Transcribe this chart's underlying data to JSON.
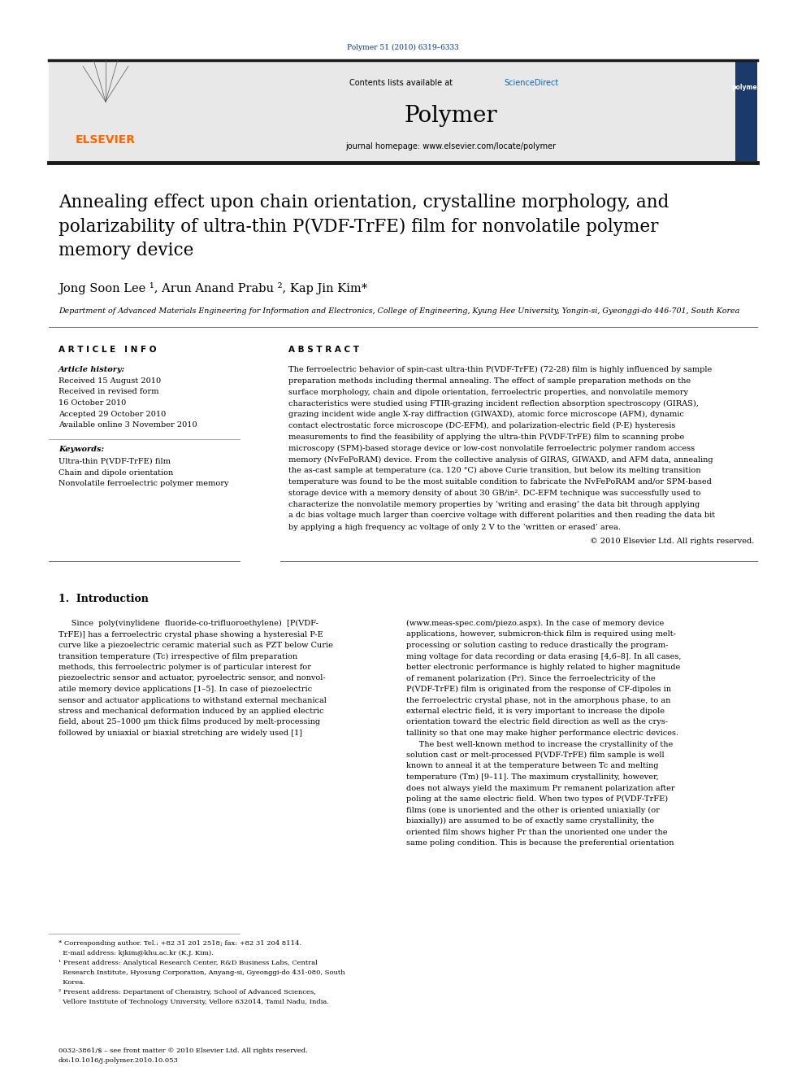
{
  "page_width": 9.92,
  "page_height": 13.23,
  "bg_color": "#ffffff",
  "journal_ref": "Polymer 51 (2010) 6319–6333",
  "journal_ref_color": "#003399",
  "header_bg": "#e8e8e8",
  "sciencedirect_color": "#0066cc",
  "journal_name": "Polymer",
  "journal_homepage": "journal homepage: www.elsevier.com/locate/polymer",
  "elsevier_color": "#ff6600",
  "elsevier_text": "ELSEVIER",
  "title": "Annealing effect upon chain orientation, crystalline morphology, and\npolarizability of ultra-thin P(VDF-TrFE) film for nonvolatile polymer\nmemory device",
  "authors": "Jong Soon Lee ¹, Arun Anand Prabu ², Kap Jin Kim*",
  "affiliation": "Department of Advanced Materials Engineering for Information and Electronics, College of Engineering, Kyung Hee University, Yongin-si, Gyeonggi-do 446-701, South Korea",
  "article_info_header": "A R T I C L E   I N F O",
  "abstract_header": "A B S T R A C T",
  "article_history_label": "Article history:",
  "received_1": "Received 15 August 2010",
  "received_2": "Received in revised form",
  "received_2b": "16 October 2010",
  "accepted": "Accepted 29 October 2010",
  "available": "Available online 3 November 2010",
  "keywords_label": "Keywords:",
  "keyword_1": "Ultra-thin P(VDF-TrFE) film",
  "keyword_2": "Chain and dipole orientation",
  "keyword_3": "Nonvolatile ferroelectric polymer memory",
  "abstract_text": "The ferroelectric behavior of spin-cast ultra-thin P(VDF-TrFE) (72-28) film is highly influenced by sample\npreparation methods including thermal annealing. The effect of sample preparation methods on the\nsurface morphology, chain and dipole orientation, ferroelectric properties, and nonvolatile memory\ncharacteristics were studied using FTIR-grazing incident reflection absorption spectroscopy (GIRAS),\ngrazing incident wide angle X-ray diffraction (GIWAXD), atomic force microscope (AFM), dynamic\ncontact electrostatic force microscope (DC-EFM), and polarization-electric field (P-E) hysteresis\nmeasurements to find the feasibility of applying the ultra-thin P(VDF-TrFE) film to scanning probe\nmicroscopy (SPM)-based storage device or low-cost nonvolatile ferroelectric polymer random access\nmemory (NvFePoRAM) device. From the collective analysis of GIRAS, GIWAXD, and AFM data, annealing\nthe as-cast sample at temperature (ca. 120 °C) above Curie transition, but below its melting transition\ntemperature was found to be the most suitable condition to fabricate the NvFePoRAM and/or SPM-based\nstorage device with a memory density of about 30 GB/in². DC-EFM technique was successfully used to\ncharacterize the nonvolatile memory properties by ‘writing and erasing’ the data bit through applying\na dc bias voltage much larger than coercive voltage with different polarities and then reading the data bit\nby applying a high frequency ac voltage of only 2 V to the ‘written or erased’ area.",
  "copyright": "© 2010 Elsevier Ltd. All rights reserved.",
  "intro_header": "1.  Introduction",
  "intro_text_col1": "     Since  poly(vinylidene  fluoride-co-trifluoroethylene)  [P(VDF-\nTrFE)] has a ferroelectric crystal phase showing a hysteresial P-E\ncurve like a piezoelectric ceramic material such as PZT below Curie\ntransition temperature (Tc) irrespective of film preparation\nmethods, this ferroelectric polymer is of particular interest for\npiezoelectric sensor and actuator, pyroelectric sensor, and nonvol-\natile memory device applications [1–5]. In case of piezoelectric\nsensor and actuator applications to withstand external mechanical\nstress and mechanical deformation induced by an applied electric\nfield, about 25–1000 μm thick films produced by melt-processing\nfollowed by uniaxial or biaxial stretching are widely used [1]",
  "intro_text_col2": "(www.meas-spec.com/piezo.aspx). In the case of memory device\napplications, however, submicron-thick film is required using melt-\nprocessing or solution casting to reduce drastically the program-\nming voltage for data recording or data erasing [4,6–8]. In all cases,\nbetter electronic performance is highly related to higher magnitude\nof remanent polarization (Pr). Since the ferroelectricity of the\nP(VDF-TrFE) film is originated from the response of CF-dipoles in\nthe ferroelectric crystal phase, not in the amorphous phase, to an\nexternal electric field, it is very important to increase the dipole\norientation toward the electric field direction as well as the crys-\ntallinity so that one may make higher performance electric devices.\n     The best well-known method to increase the crystallinity of the\nsolution cast or melt-processed P(VDF-TrFE) film sample is well\nknown to anneal it at the temperature between Tc and melting\ntemperature (Tm) [9–11]. The maximum crystallinity, however,\ndoes not always yield the maximum Pr remanent polarization after\npoling at the same electric field. When two types of P(VDF-TrFE)\nfilms (one is unoriented and the other is oriented uniaxially (or\nbiaxially)) are assumed to be of exactly same crystallinity, the\noriented film shows higher Pr than the unoriented one under the\nsame poling condition. This is because the preferential orientation",
  "footnote_text": "* Corresponding author. Tel.: +82 31 201 2518; fax: +82 31 204 8114.\n  E-mail address: kjkim@khu.ac.kr (K.J. Kim).\n¹ Present address: Analytical Research Center, R&D Business Labs, Central\n  Research Institute, Hyosung Corporation, Anyang-si, Gyeonggi-do 431-080, South\n  Korea.\n² Present address: Department of Chemistry, School of Advanced Sciences,\n  Vellore Institute of Technology University, Vellore 632014, Tamil Nadu, India.",
  "bottom_text": "0032-3861/$ – see front matter © 2010 Elsevier Ltd. All rights reserved.\ndoi:10.1016/j.polymer.2010.10.053",
  "header_divider_color": "#1a1a1a",
  "thin_line_color": "#aaaaaa",
  "section_line_color": "#666666"
}
